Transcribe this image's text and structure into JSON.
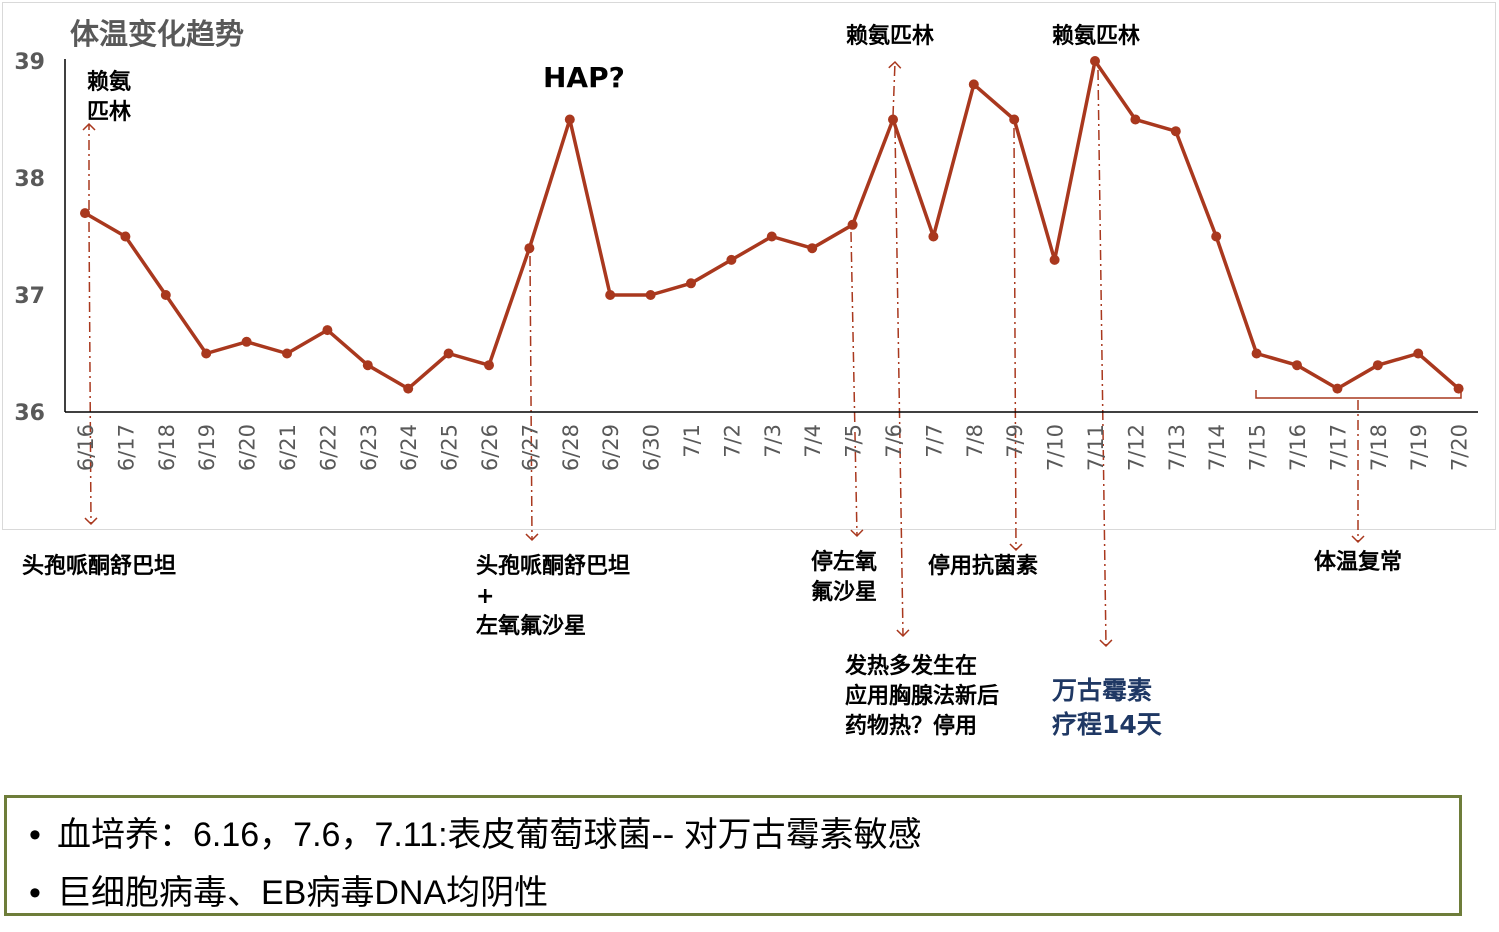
{
  "chart_data": {
    "type": "line",
    "title": "体温变化趋势",
    "xlabel": "",
    "ylabel": "",
    "categories": [
      "6/16",
      "6/17",
      "6/18",
      "6/19",
      "6/20",
      "6/21",
      "6/22",
      "6/23",
      "6/24",
      "6/25",
      "6/26",
      "6/27",
      "6/28",
      "6/29",
      "6/30",
      "7/1",
      "7/2",
      "7/3",
      "7/4",
      "7/5",
      "7/6",
      "7/7",
      "7/8",
      "7/9",
      "7/10",
      "7/11",
      "7/12",
      "7/13",
      "7/14",
      "7/15",
      "7/16",
      "7/17",
      "7/18",
      "7/19",
      "7/20"
    ],
    "values": [
      37.7,
      37.5,
      37.0,
      36.5,
      36.6,
      36.5,
      36.7,
      36.4,
      36.2,
      36.5,
      36.4,
      37.4,
      38.5,
      37.0,
      37.0,
      37.1,
      37.3,
      37.5,
      37.4,
      37.6,
      38.5,
      37.5,
      38.8,
      38.5,
      37.3,
      39.0,
      38.5,
      38.4,
      37.5,
      36.5,
      36.4,
      36.2,
      36.4,
      36.5,
      36.2
    ],
    "ylim": [
      36,
      39
    ],
    "yticks": [
      36,
      37,
      38,
      39
    ],
    "grid": false,
    "legend": "none",
    "line_color": "#a9381e",
    "annotations": {
      "top": [
        {
          "text": "赖氨\n匹林",
          "category": "6/16"
        },
        {
          "text": "HAP?",
          "category": "6/28"
        },
        {
          "text": "赖氨匹林",
          "category": "7/6"
        },
        {
          "text": "赖氨匹林",
          "category": "7/11"
        }
      ],
      "bottom": [
        {
          "text": "头孢哌酮舒巴坦",
          "category": "6/16"
        },
        {
          "text": "头孢哌酮舒巴坦\n+\n左氧氟沙星",
          "category": "6/27"
        },
        {
          "text": "停左氧\n氟沙星",
          "category": "7/5"
        },
        {
          "text": "发热多发生在\n应用胸腺法新后\n药物热？停用",
          "category": "7/6"
        },
        {
          "text": "停用抗菌素",
          "category": "7/9"
        },
        {
          "text": "万古霉素\n疗程14天",
          "category": "7/11"
        },
        {
          "text": "体温复常",
          "category": "7/15–7/20"
        }
      ]
    }
  },
  "info": {
    "line1": "血培养：6.16，7.6，7.11:表皮葡萄球菌-- 对万古霉素敏感",
    "line2": "巨细胞病毒、EB病毒DNA均阴性",
    "bullet": "•"
  }
}
